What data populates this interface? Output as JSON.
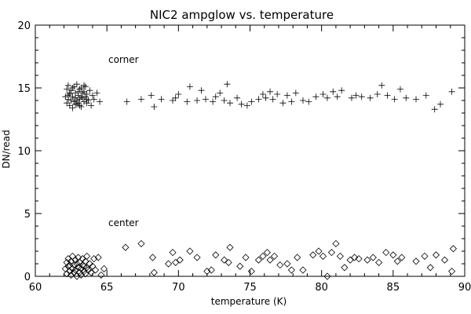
{
  "chart_data": {
    "type": "scatter",
    "title": "NIC2 ampglow vs. temperature",
    "xlabel": "temperature (K)",
    "ylabel": "DN/read",
    "xlim": [
      60,
      90
    ],
    "ylim": [
      0,
      20
    ],
    "x_ticks": [
      60,
      65,
      70,
      75,
      80,
      85,
      90
    ],
    "y_ticks": [
      0,
      5,
      10,
      15,
      20
    ],
    "x_minor_step": 1,
    "y_minor_step": 1,
    "grid": false,
    "annotations": [
      {
        "text": "corner",
        "x": 65.1,
        "y": 17.0
      },
      {
        "text": "center",
        "x": 65.1,
        "y": 4.0
      }
    ],
    "series": [
      {
        "marker": "plus",
        "points": [
          [
            62.1,
            14.3
          ],
          [
            62.2,
            13.8
          ],
          [
            62.2,
            14.9
          ],
          [
            62.3,
            14.1
          ],
          [
            62.3,
            15.2
          ],
          [
            62.4,
            13.6
          ],
          [
            62.4,
            14.5
          ],
          [
            62.5,
            14.0
          ],
          [
            62.5,
            14.8
          ],
          [
            62.6,
            13.4
          ],
          [
            62.6,
            14.3
          ],
          [
            62.7,
            15.1
          ],
          [
            62.7,
            13.9
          ],
          [
            62.8,
            14.6
          ],
          [
            62.8,
            14.2
          ],
          [
            62.9,
            13.7
          ],
          [
            62.9,
            15.3
          ],
          [
            63.0,
            14.4
          ],
          [
            63.0,
            13.8
          ],
          [
            63.1,
            14.9
          ],
          [
            63.1,
            14.1
          ],
          [
            63.2,
            15.0
          ],
          [
            63.2,
            13.5
          ],
          [
            63.3,
            14.6
          ],
          [
            63.3,
            14.2
          ],
          [
            63.4,
            13.9
          ],
          [
            63.4,
            14.7
          ],
          [
            63.5,
            14.3
          ],
          [
            63.5,
            15.1
          ],
          [
            63.6,
            13.8
          ],
          [
            63.6,
            14.5
          ],
          [
            63.7,
            14.0
          ],
          [
            63.8,
            14.8
          ],
          [
            63.9,
            13.6
          ],
          [
            64.0,
            14.4
          ],
          [
            64.1,
            14.1
          ],
          [
            64.3,
            14.6
          ],
          [
            64.5,
            13.9
          ],
          [
            62.4,
            14.6
          ],
          [
            62.6,
            15.0
          ],
          [
            62.8,
            13.7
          ],
          [
            63.0,
            14.7
          ],
          [
            63.2,
            14.3
          ],
          [
            63.4,
            15.2
          ],
          [
            63.6,
            14.1
          ],
          [
            62.3,
            14.4
          ],
          [
            62.9,
            14.0
          ],
          [
            63.1,
            13.6
          ],
          [
            66.4,
            13.9
          ],
          [
            67.4,
            14.1
          ],
          [
            68.1,
            14.4
          ],
          [
            68.3,
            13.5
          ],
          [
            68.8,
            14.1
          ],
          [
            69.6,
            14.0
          ],
          [
            69.8,
            14.2
          ],
          [
            70.0,
            14.5
          ],
          [
            70.6,
            13.9
          ],
          [
            70.8,
            15.1
          ],
          [
            71.3,
            14.0
          ],
          [
            71.6,
            14.8
          ],
          [
            71.9,
            14.1
          ],
          [
            72.4,
            13.9
          ],
          [
            72.6,
            14.3
          ],
          [
            72.9,
            14.6
          ],
          [
            73.2,
            14.0
          ],
          [
            73.4,
            15.3
          ],
          [
            73.6,
            13.8
          ],
          [
            74.1,
            14.2
          ],
          [
            74.4,
            13.7
          ],
          [
            74.8,
            13.6
          ],
          [
            75.1,
            13.9
          ],
          [
            75.6,
            14.1
          ],
          [
            75.9,
            14.5
          ],
          [
            76.1,
            14.2
          ],
          [
            76.4,
            14.7
          ],
          [
            76.6,
            14.1
          ],
          [
            76.9,
            14.5
          ],
          [
            77.3,
            13.8
          ],
          [
            77.6,
            14.4
          ],
          [
            77.9,
            13.9
          ],
          [
            78.2,
            14.6
          ],
          [
            78.7,
            14.0
          ],
          [
            79.1,
            13.9
          ],
          [
            79.6,
            14.3
          ],
          [
            80.1,
            14.5
          ],
          [
            80.4,
            14.2
          ],
          [
            80.8,
            14.7
          ],
          [
            81.1,
            14.3
          ],
          [
            81.4,
            14.8
          ],
          [
            82.1,
            14.2
          ],
          [
            82.4,
            14.4
          ],
          [
            82.8,
            14.3
          ],
          [
            83.4,
            14.2
          ],
          [
            83.9,
            14.5
          ],
          [
            84.2,
            15.2
          ],
          [
            84.6,
            14.4
          ],
          [
            85.1,
            14.1
          ],
          [
            85.5,
            14.9
          ],
          [
            85.9,
            14.2
          ],
          [
            86.6,
            14.1
          ],
          [
            87.3,
            14.4
          ],
          [
            87.9,
            13.3
          ],
          [
            88.3,
            13.7
          ],
          [
            89.1,
            14.7
          ]
        ]
      },
      {
        "marker": "diamond",
        "points": [
          [
            62.1,
            0.6
          ],
          [
            62.2,
            1.1
          ],
          [
            62.2,
            0.2
          ],
          [
            62.3,
            0.8
          ],
          [
            62.3,
            1.4
          ],
          [
            62.4,
            0.4
          ],
          [
            62.4,
            0.9
          ],
          [
            62.5,
            0.1
          ],
          [
            62.5,
            1.2
          ],
          [
            62.6,
            0.6
          ],
          [
            62.6,
            1.6
          ],
          [
            62.7,
            0.3
          ],
          [
            62.7,
            0.9
          ],
          [
            62.8,
            1.3
          ],
          [
            62.8,
            0.5
          ],
          [
            62.9,
            0.0
          ],
          [
            62.9,
            1.0
          ],
          [
            63.0,
            0.7
          ],
          [
            63.0,
            1.5
          ],
          [
            63.1,
            0.3
          ],
          [
            63.1,
            1.1
          ],
          [
            63.2,
            0.6
          ],
          [
            63.2,
            0.1
          ],
          [
            63.3,
            0.9
          ],
          [
            63.3,
            1.4
          ],
          [
            63.4,
            0.4
          ],
          [
            63.4,
            0.8
          ],
          [
            63.5,
            1.2
          ],
          [
            63.5,
            0.2
          ],
          [
            63.6,
            0.7
          ],
          [
            63.6,
            1.6
          ],
          [
            63.7,
            0.5
          ],
          [
            63.8,
            1.0
          ],
          [
            63.9,
            0.3
          ],
          [
            64.0,
            0.8
          ],
          [
            64.1,
            1.4
          ],
          [
            64.2,
            0.5
          ],
          [
            64.4,
            1.5
          ],
          [
            64.6,
            0.1
          ],
          [
            64.8,
            0.6
          ],
          [
            66.3,
            2.3
          ],
          [
            67.4,
            2.6
          ],
          [
            68.2,
            1.5
          ],
          [
            68.3,
            0.3
          ],
          [
            69.3,
            1.0
          ],
          [
            69.6,
            1.9
          ],
          [
            69.8,
            1.1
          ],
          [
            70.1,
            1.3
          ],
          [
            70.8,
            2.0
          ],
          [
            71.3,
            1.5
          ],
          [
            72.0,
            0.4
          ],
          [
            72.3,
            0.5
          ],
          [
            72.6,
            1.7
          ],
          [
            73.2,
            1.3
          ],
          [
            73.5,
            1.1
          ],
          [
            73.6,
            2.3
          ],
          [
            74.3,
            0.8
          ],
          [
            74.7,
            1.5
          ],
          [
            75.1,
            0.4
          ],
          [
            75.6,
            1.3
          ],
          [
            75.9,
            1.6
          ],
          [
            76.2,
            1.9
          ],
          [
            76.4,
            1.3
          ],
          [
            76.7,
            1.6
          ],
          [
            77.1,
            0.9
          ],
          [
            77.6,
            1.0
          ],
          [
            77.9,
            0.5
          ],
          [
            78.3,
            1.5
          ],
          [
            78.7,
            0.5
          ],
          [
            79.4,
            1.7
          ],
          [
            79.8,
            2.0
          ],
          [
            80.1,
            1.6
          ],
          [
            80.4,
            0.0
          ],
          [
            80.7,
            1.9
          ],
          [
            81.0,
            2.6
          ],
          [
            81.3,
            1.6
          ],
          [
            81.6,
            0.7
          ],
          [
            82.0,
            1.3
          ],
          [
            82.3,
            1.5
          ],
          [
            82.6,
            1.4
          ],
          [
            83.2,
            1.3
          ],
          [
            83.6,
            1.5
          ],
          [
            84.0,
            1.1
          ],
          [
            84.5,
            1.9
          ],
          [
            85.0,
            1.7
          ],
          [
            85.3,
            1.2
          ],
          [
            85.6,
            1.5
          ],
          [
            86.6,
            1.2
          ],
          [
            87.2,
            1.6
          ],
          [
            87.6,
            0.7
          ],
          [
            88.0,
            1.7
          ],
          [
            88.6,
            1.3
          ],
          [
            89.1,
            0.4
          ],
          [
            89.2,
            2.2
          ]
        ]
      }
    ]
  }
}
